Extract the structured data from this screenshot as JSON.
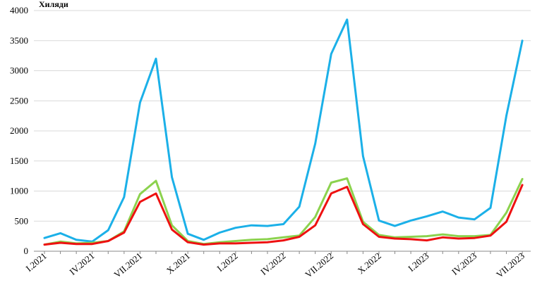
{
  "chart_data": {
    "type": "line",
    "title": "",
    "xlabel": "",
    "ylabel": "Хиляди",
    "ylim": [
      0,
      4000
    ],
    "yticks": [
      0,
      500,
      1000,
      1500,
      2000,
      2500,
      3000,
      3500,
      4000
    ],
    "grid": "horizontal",
    "legend": "none",
    "x": [
      "I.2021",
      "II.2021",
      "III.2021",
      "IV.2021",
      "V.2021",
      "VI.2021",
      "VII.2021",
      "VIII.2021",
      "IX.2021",
      "X.2021",
      "XI.2021",
      "XII.2021",
      "I.2022",
      "II.2022",
      "III.2022",
      "IV.2022",
      "V.2022",
      "VI.2022",
      "VII.2022",
      "VIII.2022",
      "IX.2022",
      "X.2022",
      "XI.2022",
      "XII.2022",
      "I.2023",
      "II.2023",
      "III.2023",
      "IV.2023",
      "V.2023",
      "VI.2023",
      "VII.2023"
    ],
    "x_tick_labels": [
      "I.2021",
      "IV.2021",
      "VII.2021",
      "X.2021",
      "I.2022",
      "IV.2022",
      "VII.2022",
      "X.2022",
      "I.2023",
      "IV.2023",
      "VII.2023"
    ],
    "series": [
      {
        "color": "#1BB0E8",
        "values": [
          220,
          300,
          190,
          160,
          350,
          900,
          2470,
          3200,
          1230,
          290,
          190,
          310,
          390,
          430,
          420,
          450,
          740,
          1790,
          3280,
          3850,
          1580,
          510,
          420,
          510,
          580,
          660,
          560,
          530,
          720,
          2250,
          3500
        ]
      },
      {
        "color": "#8CD24E",
        "values": [
          110,
          160,
          130,
          140,
          170,
          330,
          950,
          1170,
          430,
          170,
          120,
          150,
          170,
          190,
          200,
          230,
          260,
          570,
          1140,
          1210,
          490,
          270,
          230,
          240,
          250,
          280,
          250,
          250,
          270,
          640,
          1200
        ]
      },
      {
        "color": "#EE1111",
        "values": [
          110,
          140,
          120,
          120,
          170,
          310,
          820,
          960,
          360,
          150,
          110,
          130,
          130,
          140,
          150,
          180,
          240,
          430,
          960,
          1070,
          450,
          240,
          210,
          200,
          180,
          230,
          210,
          220,
          260,
          490,
          1100
        ]
      }
    ]
  }
}
